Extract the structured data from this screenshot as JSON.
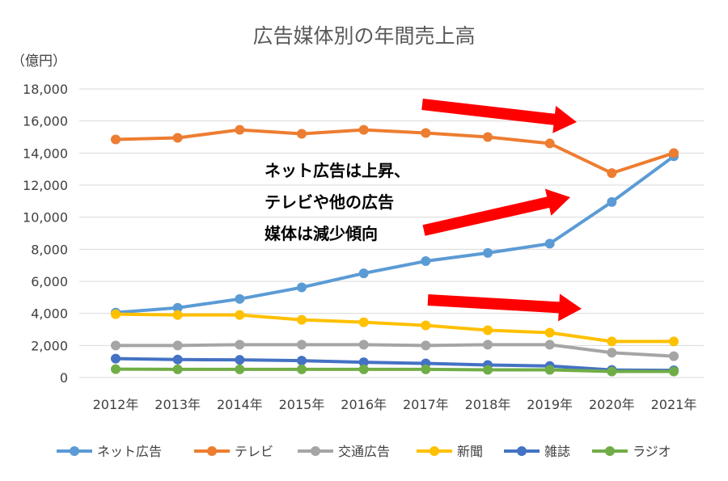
{
  "chart_data": {
    "type": "line",
    "title": "広告媒体別の年間売上高",
    "unit_label": "（億円）",
    "categories": [
      "2012年",
      "2013年",
      "2014年",
      "2015年",
      "2016年",
      "2017年",
      "2018年",
      "2019年",
      "2020年",
      "2021年"
    ],
    "ylim": [
      0,
      18000
    ],
    "yticks": [
      0,
      2000,
      4000,
      6000,
      8000,
      10000,
      12000,
      14000,
      16000,
      18000
    ],
    "ytick_labels": [
      "0",
      "2,000",
      "4,000",
      "6,000",
      "8,000",
      "10,000",
      "12,000",
      "14,000",
      "16,000",
      "18,000"
    ],
    "grid": true,
    "legend_position": "bottom",
    "series": [
      {
        "name": "ネット広告",
        "color": "#5b9bd5",
        "values": [
          4050,
          4350,
          4900,
          5620,
          6500,
          7260,
          7770,
          8350,
          10950,
          13800
        ]
      },
      {
        "name": "テレビ",
        "color": "#ed7d31",
        "values": [
          14850,
          14950,
          15450,
          15200,
          15450,
          15250,
          15000,
          14600,
          12750,
          14000
        ]
      },
      {
        "name": "交通広告",
        "color": "#a5a5a5",
        "values": [
          2000,
          2000,
          2050,
          2050,
          2050,
          2000,
          2050,
          2050,
          1550,
          1330
        ]
      },
      {
        "name": "新聞",
        "color": "#ffc000",
        "values": [
          3950,
          3900,
          3900,
          3600,
          3450,
          3250,
          2950,
          2800,
          2250,
          2250
        ]
      },
      {
        "name": "雑誌",
        "color": "#4472c4",
        "values": [
          1180,
          1120,
          1100,
          1050,
          950,
          880,
          780,
          720,
          470,
          450
        ]
      },
      {
        "name": "ラジオ",
        "color": "#70ad47",
        "values": [
          520,
          510,
          510,
          510,
          510,
          510,
          480,
          480,
          380,
          380
        ]
      }
    ],
    "annotation_lines": [
      "ネット広告は上昇、",
      "テレビや他の広告",
      "媒体は減少傾向"
    ],
    "arrow_color": "#ff0000"
  }
}
